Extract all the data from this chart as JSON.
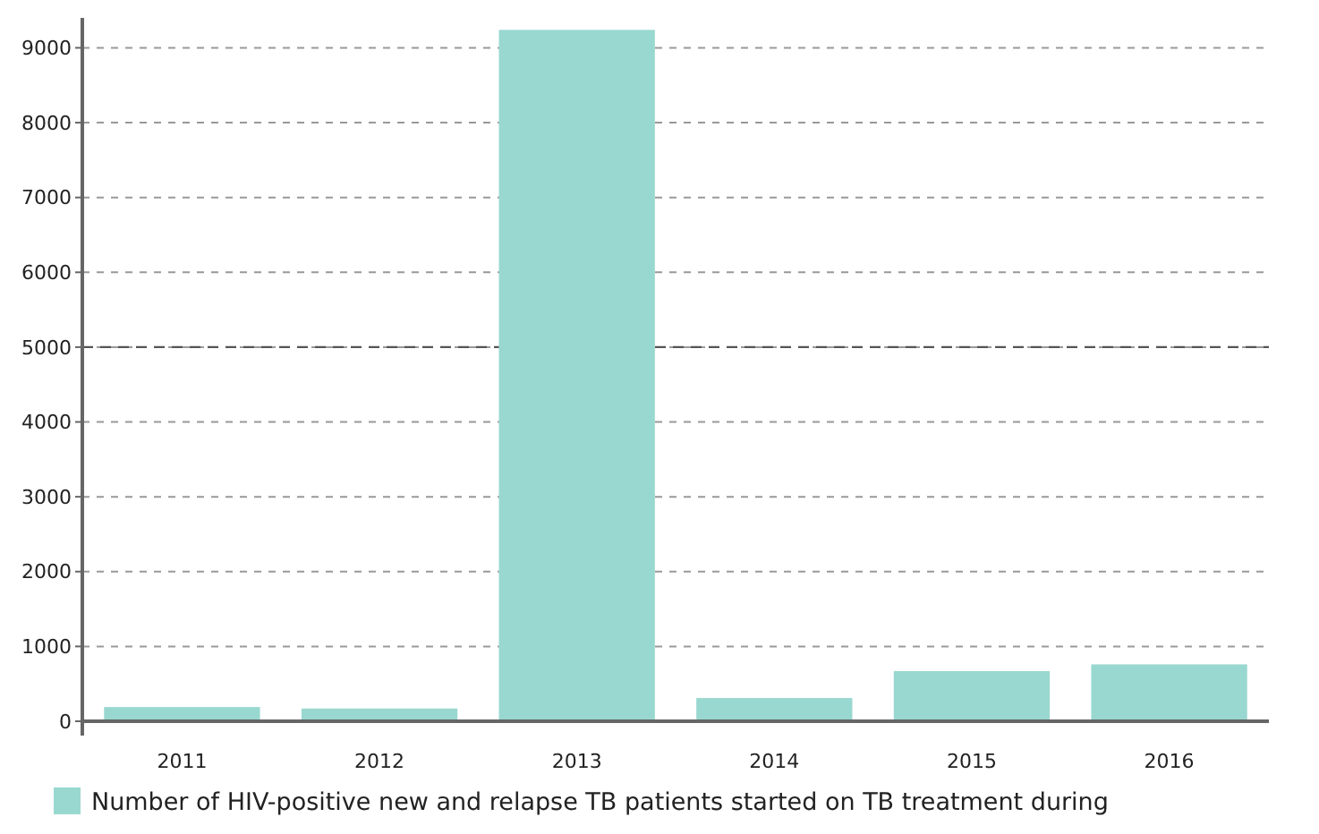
{
  "chart_data": {
    "type": "bar",
    "categories": [
      "2011",
      "2012",
      "2013",
      "2014",
      "2015",
      "2016"
    ],
    "series": [
      {
        "name": "Number of HIV-positive new and relapse TB patients started on TB treatment during",
        "color": "#99d8d0",
        "values": [
          190,
          170,
          9240,
          310,
          670,
          760
        ]
      }
    ],
    "ylim": [
      0,
      9400
    ],
    "yticks": [
      0,
      1000,
      2000,
      3000,
      4000,
      5000,
      6000,
      7000,
      8000,
      9000
    ],
    "grid": "y",
    "legend": "bottom",
    "ref_lines": [
      {
        "axis": "y",
        "value": 5000,
        "color": "#555555",
        "line_style": "dashed"
      }
    ]
  }
}
